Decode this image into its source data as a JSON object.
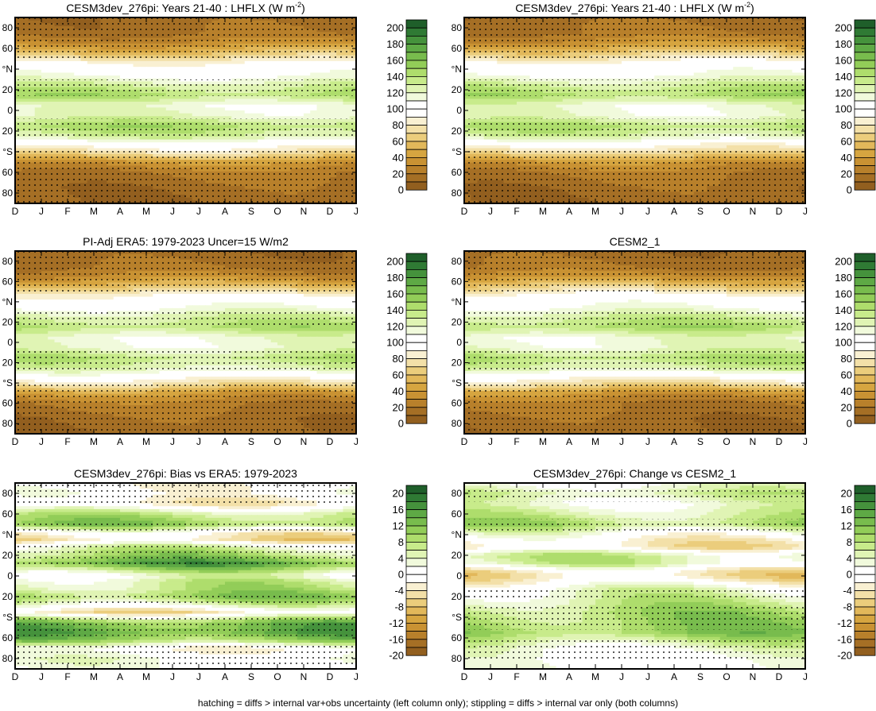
{
  "footer": "hatching = diffs > internal var+obs uncertainty (left column only); stippling = diffs > internal var only (both columns)",
  "month_labels": [
    "D",
    "J",
    "F",
    "M",
    "A",
    "M",
    "J",
    "J",
    "A",
    "S",
    "O",
    "N",
    "D",
    "J"
  ],
  "lat_labels": [
    "80",
    "60",
    "°N",
    "20",
    "0",
    "20",
    "°S",
    "60",
    "80"
  ],
  "lat_values": [
    80,
    60,
    40,
    20,
    0,
    -20,
    -40,
    -60,
    -80
  ],
  "colorbars": {
    "abs": {
      "labels": [
        "200",
        "180",
        "160",
        "140",
        "120",
        "100",
        "80",
        "60",
        "40",
        "20",
        "0"
      ],
      "colors": [
        "#1f5f2a",
        "#2f7a34",
        "#45923c",
        "#5ea945",
        "#78bc4d",
        "#92cd58",
        "#aedd6c",
        "#c8eb8b",
        "#e0f4b4",
        "#f1fadc",
        "#ffffff",
        "#ffffff",
        "#f9f0d2",
        "#f3e0a8",
        "#ebcd7c",
        "#e2b85a",
        "#d6a540",
        "#c99233",
        "#b8802b",
        "#a56f25",
        "#925f1f"
      ]
    },
    "diff": {
      "labels": [
        "20",
        "16",
        "12",
        "8",
        "4",
        "0",
        "-4",
        "-8",
        "-12",
        "-16",
        "-20"
      ],
      "colors": [
        "#1f5f2a",
        "#2f7a34",
        "#45923c",
        "#5ea945",
        "#78bc4d",
        "#92cd58",
        "#aedd6c",
        "#c8eb8b",
        "#e0f4b4",
        "#f1fadc",
        "#ffffff",
        "#ffffff",
        "#f9f0d2",
        "#f3e0a8",
        "#ebcd7c",
        "#e2b85a",
        "#d6a540",
        "#c99233",
        "#b8802b",
        "#a56f25",
        "#925f1f"
      ]
    }
  },
  "chart_data": [
    {
      "type": "heatmap",
      "title": "CESM3dev_276pi: Years 21-40 : LHFLX (W m",
      "title_sup": "-2",
      "title_end": ")",
      "colorbar": "abs",
      "x": "months D-J",
      "y": "latitude",
      "zlim": [
        -10,
        210
      ],
      "zonal_profile": [
        [
          90,
          5
        ],
        [
          75,
          8
        ],
        [
          65,
          25
        ],
        [
          55,
          55
        ],
        [
          45,
          90
        ],
        [
          35,
          100
        ],
        [
          25,
          125
        ],
        [
          15,
          140
        ],
        [
          5,
          110
        ],
        [
          -5,
          115
        ],
        [
          -15,
          140
        ],
        [
          -25,
          125
        ],
        [
          -32,
          95
        ],
        [
          -42,
          65
        ],
        [
          -50,
          30
        ],
        [
          -60,
          12
        ],
        [
          -75,
          5
        ],
        [
          -90,
          3
        ]
      ],
      "stippling": "heavy in polar/extratropical regions"
    },
    {
      "type": "heatmap",
      "title": "CESM3dev_276pi: Years 21-40 : LHFLX (W m",
      "title_sup": "-2",
      "title_end": ")",
      "colorbar": "abs",
      "x": "months D-J",
      "y": "latitude",
      "zlim": [
        -10,
        210
      ],
      "zonal_profile": [
        [
          90,
          6
        ],
        [
          75,
          10
        ],
        [
          65,
          28
        ],
        [
          55,
          60
        ],
        [
          45,
          92
        ],
        [
          35,
          102
        ],
        [
          25,
          128
        ],
        [
          15,
          142
        ],
        [
          5,
          112
        ],
        [
          -5,
          112
        ],
        [
          -15,
          138
        ],
        [
          -25,
          122
        ],
        [
          -32,
          92
        ],
        [
          -42,
          60
        ],
        [
          -50,
          28
        ],
        [
          -60,
          12
        ],
        [
          -75,
          5
        ],
        [
          -90,
          3
        ]
      ],
      "stippling": "heavy in polar/extratropical regions"
    },
    {
      "type": "heatmap",
      "title": "PI-Adj ERA5: 1979-2023 Uncer=15 W/m2",
      "colorbar": "abs",
      "x": "months D-J",
      "y": "latitude",
      "zlim": [
        -10,
        210
      ],
      "zonal_profile": [
        [
          90,
          4
        ],
        [
          75,
          8
        ],
        [
          65,
          22
        ],
        [
          55,
          52
        ],
        [
          45,
          88
        ],
        [
          35,
          102
        ],
        [
          25,
          125
        ],
        [
          15,
          138
        ],
        [
          5,
          112
        ],
        [
          -5,
          112
        ],
        [
          -15,
          135
        ],
        [
          -25,
          122
        ],
        [
          -32,
          98
        ],
        [
          -42,
          66
        ],
        [
          -50,
          32
        ],
        [
          -60,
          14
        ],
        [
          -75,
          5
        ],
        [
          -90,
          3
        ]
      ],
      "stippling": "heavy in polar/extratropical regions"
    },
    {
      "type": "heatmap",
      "title": "CESM2_1",
      "colorbar": "abs",
      "x": "months D-J",
      "y": "latitude",
      "zlim": [
        -10,
        210
      ],
      "zonal_profile": [
        [
          90,
          5
        ],
        [
          75,
          9
        ],
        [
          65,
          26
        ],
        [
          55,
          58
        ],
        [
          45,
          92
        ],
        [
          35,
          102
        ],
        [
          25,
          126
        ],
        [
          15,
          140
        ],
        [
          5,
          112
        ],
        [
          -5,
          114
        ],
        [
          -15,
          138
        ],
        [
          -25,
          124
        ],
        [
          -32,
          96
        ],
        [
          -42,
          64
        ],
        [
          -50,
          30
        ],
        [
          -60,
          12
        ],
        [
          -75,
          5
        ],
        [
          -90,
          3
        ]
      ],
      "stippling": "heavy in polar/extratropical regions"
    },
    {
      "type": "heatmap",
      "title": "CESM3dev_276pi: Bias vs ERA5: 1979-2023",
      "colorbar": "diff",
      "x": "months D-J",
      "y": "latitude",
      "zlim": [
        -22,
        22
      ],
      "zonal_profile": [
        [
          90,
          -2
        ],
        [
          80,
          -1
        ],
        [
          70,
          -4
        ],
        [
          60,
          6
        ],
        [
          50,
          10
        ],
        [
          42,
          -3
        ],
        [
          35,
          -6
        ],
        [
          28,
          4
        ],
        [
          20,
          8
        ],
        [
          12,
          14
        ],
        [
          5,
          6
        ],
        [
          0,
          1
        ],
        [
          -5,
          5
        ],
        [
          -12,
          6
        ],
        [
          -20,
          10
        ],
        [
          -28,
          3
        ],
        [
          -35,
          -5
        ],
        [
          -45,
          12
        ],
        [
          -55,
          14
        ],
        [
          -62,
          10
        ],
        [
          -70,
          -2
        ],
        [
          -80,
          1
        ],
        [
          -90,
          0
        ]
      ],
      "stippling": "widespread"
    },
    {
      "type": "heatmap",
      "title": "CESM3dev_276pi: Change vs CESM2_1",
      "colorbar": "diff",
      "x": "months D-J",
      "y": "latitude",
      "zlim": [
        -22,
        22
      ],
      "zonal_profile": [
        [
          90,
          1
        ],
        [
          80,
          5
        ],
        [
          70,
          2
        ],
        [
          60,
          5
        ],
        [
          50,
          8
        ],
        [
          42,
          1
        ],
        [
          35,
          -3
        ],
        [
          28,
          -5
        ],
        [
          20,
          5
        ],
        [
          12,
          4
        ],
        [
          5,
          -4
        ],
        [
          0,
          -6
        ],
        [
          -5,
          -3
        ],
        [
          -12,
          2
        ],
        [
          -20,
          4
        ],
        [
          -28,
          6
        ],
        [
          -35,
          8
        ],
        [
          -45,
          9
        ],
        [
          -55,
          10
        ],
        [
          -62,
          6
        ],
        [
          -70,
          2
        ],
        [
          -80,
          0
        ],
        [
          -90,
          0
        ]
      ],
      "stippling": "moderate"
    }
  ]
}
